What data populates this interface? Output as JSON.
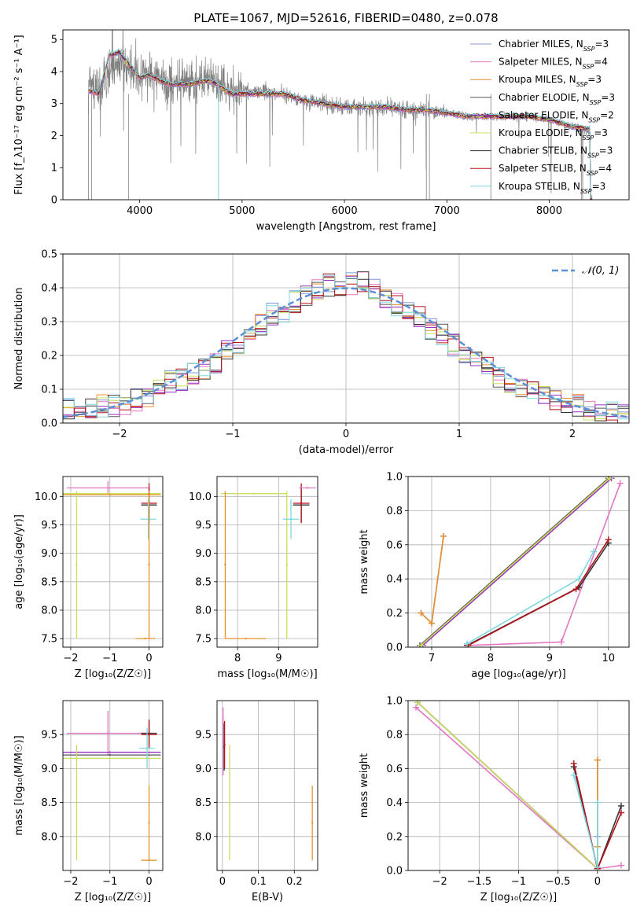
{
  "figure_title": "PLATE=1067, MJD=52616, FIBERID=0480, z=0.078",
  "models": [
    {
      "name": "Chabrier MILES",
      "nssp": "3",
      "color": "#7f96d8"
    },
    {
      "name": "Salpeter MILES",
      "nssp": "4",
      "color": "#e377c2"
    },
    {
      "name": "Kroupa MILES",
      "nssp": "3",
      "color": "#e8902c"
    },
    {
      "name": "Chabrier ELODIE",
      "nssp": "3",
      "color": "#555555"
    },
    {
      "name": "Salpeter ELODIE",
      "nssp": "2",
      "color": "#9a2fc4"
    },
    {
      "name": "Kroupa ELODIE",
      "nssp": "3",
      "color": "#c8e05a"
    },
    {
      "name": "Chabrier STELIB",
      "nssp": "3",
      "color": "#333333"
    },
    {
      "name": "Salpeter STELIB",
      "nssp": "4",
      "color": "#b5121b"
    },
    {
      "name": "Kroupa STELIB",
      "nssp": "3",
      "color": "#7fd8e0"
    }
  ],
  "chart_data": [
    {
      "id": "spectrum",
      "type": "line",
      "title": "PLATE=1067, MJD=52616, FIBERID=0480, z=0.078",
      "xlabel": "wavelength [Angstrom, rest frame]",
      "ylabel": "Flux [f_λ10⁻¹⁷ erg cm⁻² s⁻¹ A⁻¹]",
      "xlim": [
        3250,
        8780
      ],
      "ylim": [
        0,
        5.3
      ],
      "xticks": [
        4000,
        5000,
        6000,
        7000,
        8000
      ],
      "yticks": [
        0,
        1,
        2,
        3,
        4,
        5
      ],
      "legend_position": "top-right",
      "observed_flux": {
        "x": [
          3500,
          3600,
          3700,
          3800,
          3900,
          4000,
          4100,
          4200,
          4300,
          4400,
          4500,
          4600,
          4700,
          4800,
          4900,
          5000,
          5200,
          5400,
          5600,
          5800,
          6000,
          6200,
          6400,
          6600,
          6800,
          7000,
          7200,
          7400,
          7600,
          7800,
          8000,
          8200,
          8400
        ],
        "y": [
          3.5,
          3.4,
          3.9,
          4.3,
          4.1,
          3.8,
          3.9,
          3.7,
          3.6,
          3.7,
          3.6,
          3.7,
          3.7,
          3.6,
          3.4,
          3.4,
          3.4,
          3.3,
          3.1,
          3.0,
          2.9,
          2.9,
          2.9,
          2.8,
          2.8,
          2.7,
          2.6,
          2.6,
          2.6,
          2.6,
          2.5,
          2.3,
          2.1
        ]
      },
      "model_flux": {
        "x": [
          3500,
          3600,
          3700,
          3800,
          3900,
          4000,
          4100,
          4200,
          4300,
          4400,
          4500,
          4600,
          4700,
          4800,
          4900,
          5000,
          5200,
          5400,
          5600,
          5800,
          6000,
          6200,
          6400,
          6600,
          6800,
          7000,
          7200,
          7400,
          7600,
          7800,
          8000,
          8200,
          8400
        ],
        "y": [
          3.4,
          3.3,
          4.5,
          4.6,
          4.2,
          3.8,
          3.9,
          3.7,
          3.6,
          3.6,
          3.6,
          3.7,
          3.7,
          3.5,
          3.3,
          3.3,
          3.3,
          3.3,
          3.1,
          3.0,
          2.9,
          2.9,
          2.9,
          2.8,
          2.8,
          2.7,
          2.6,
          2.6,
          2.6,
          2.6,
          2.5,
          2.3,
          2.2
        ]
      }
    },
    {
      "id": "residuals",
      "type": "line",
      "xlabel": "(data-model)/error",
      "ylabel": "Normed distribution",
      "xlim": [
        -2.5,
        2.5
      ],
      "ylim": [
        0,
        0.5
      ],
      "xticks": [
        -2,
        -1,
        0,
        1,
        2
      ],
      "yticks": [
        0.0,
        0.1,
        0.2,
        0.3,
        0.4,
        0.5
      ],
      "legend_position": "top-right",
      "reference_curve": "𝒩(0, 1)",
      "reference_color": "#5b8fd6",
      "histogram_bin_edges": [
        -2.5,
        -2.4,
        -2.3,
        -2.2,
        -2.1,
        -2.0,
        -1.9,
        -1.8,
        -1.7,
        -1.6,
        -1.5,
        -1.4,
        -1.3,
        -1.2,
        -1.1,
        -1.0,
        -0.9,
        -0.8,
        -0.7,
        -0.6,
        -0.5,
        -0.4,
        -0.3,
        -0.2,
        -0.1,
        0.0,
        0.1,
        0.2,
        0.3,
        0.4,
        0.5,
        0.6,
        0.7,
        0.8,
        0.9,
        1.0,
        1.1,
        1.2,
        1.3,
        1.4,
        1.5,
        1.6,
        1.7,
        1.8,
        1.9,
        2.0,
        2.1,
        2.2,
        2.3,
        2.4,
        2.5
      ],
      "histogram_counts_typical": [
        0.04,
        0.03,
        0.04,
        0.05,
        0.05,
        0.06,
        0.07,
        0.08,
        0.1,
        0.12,
        0.13,
        0.15,
        0.16,
        0.18,
        0.21,
        0.24,
        0.26,
        0.29,
        0.32,
        0.33,
        0.36,
        0.38,
        0.4,
        0.41,
        0.4,
        0.41,
        0.42,
        0.4,
        0.37,
        0.35,
        0.33,
        0.31,
        0.28,
        0.26,
        0.23,
        0.2,
        0.18,
        0.16,
        0.14,
        0.12,
        0.11,
        0.1,
        0.08,
        0.07,
        0.06,
        0.05,
        0.04,
        0.04,
        0.03,
        0.03
      ]
    },
    {
      "id": "age_vs_Z",
      "type": "scatter",
      "xlabel": "Z [log₁₀(Z/Z☉)]",
      "ylabel": "age  [log₁₀(age/yr)]",
      "xlim": [
        -2.2,
        0.35
      ],
      "ylim": [
        7.35,
        10.35
      ],
      "xticks": [
        -2,
        -1,
        0
      ],
      "yticks": [
        7.5,
        8.0,
        8.5,
        9.0,
        9.5,
        10.0
      ],
      "points": [
        {
          "x": -1.05,
          "y": 10.15,
          "xerr": 1.05,
          "yerr": 0.12,
          "model": "Salpeter MILES"
        },
        {
          "x": -1.0,
          "y": 10.05,
          "xerr": 1.3,
          "yerr": 0.0,
          "model": "Kroupa ELODIE"
        },
        {
          "x": -1.0,
          "y": 10.03,
          "xerr": 1.3,
          "yerr": 0.0,
          "model": "Kroupa MILES"
        },
        {
          "x": -1.85,
          "y": 8.8,
          "xerr": 0.0,
          "yerr": 1.3,
          "model": "Kroupa ELODIE"
        },
        {
          "x": 0.0,
          "y": 9.85,
          "xerr": 0.2,
          "yerr": 0.3,
          "model": "Chabrier STELIB"
        },
        {
          "x": 0.0,
          "y": 9.88,
          "xerr": 0.2,
          "yerr": 0.35,
          "model": "Salpeter STELIB"
        },
        {
          "x": -0.02,
          "y": 9.6,
          "xerr": 0.2,
          "yerr": 0.35,
          "model": "Kroupa STELIB"
        },
        {
          "x": 0.0,
          "y": 8.8,
          "xerr": 0.0,
          "yerr": 1.3,
          "model": "Kroupa MILES"
        },
        {
          "x": -0.1,
          "y": 7.5,
          "xerr": 0.25,
          "yerr": 0.0,
          "model": "Kroupa MILES"
        }
      ]
    },
    {
      "id": "age_vs_mass",
      "type": "scatter",
      "xlabel": "mass [log₁₀(M/M☉)]",
      "ylabel": "",
      "xlim": [
        7.5,
        9.95
      ],
      "ylim": [
        7.35,
        10.35
      ],
      "xticks": [
        8,
        9
      ],
      "yticks": [
        7.5,
        8.0,
        8.5,
        9.0,
        9.5,
        10.0
      ],
      "points": [
        {
          "x": 8.4,
          "y": 10.05,
          "xerr": 0.8,
          "yerr": 0.0,
          "model": "Kroupa ELODIE"
        },
        {
          "x": 7.7,
          "y": 8.8,
          "xerr": 0.0,
          "yerr": 1.3,
          "model": "Kroupa MILES"
        },
        {
          "x": 8.2,
          "y": 7.5,
          "xerr": 0.5,
          "yerr": 0.0,
          "model": "Kroupa MILES"
        },
        {
          "x": 9.2,
          "y": 8.8,
          "xerr": 0.0,
          "yerr": 1.3,
          "model": "Kroupa ELODIE"
        },
        {
          "x": 9.55,
          "y": 9.85,
          "xerr": 0.2,
          "yerr": 0.3,
          "model": "Chabrier STELIB"
        },
        {
          "x": 9.55,
          "y": 9.88,
          "xerr": 0.2,
          "yerr": 0.35,
          "model": "Salpeter STELIB"
        },
        {
          "x": 9.3,
          "y": 9.6,
          "xerr": 0.2,
          "yerr": 0.35,
          "model": "Kroupa STELIB"
        },
        {
          "x": 9.7,
          "y": 10.15,
          "xerr": 0.2,
          "yerr": 0.0,
          "model": "Salpeter MILES"
        }
      ]
    },
    {
      "id": "weight_vs_age",
      "type": "line",
      "xlabel": "age  [log₁₀(age/yr)]",
      "ylabel": "mass weight",
      "xlim": [
        6.6,
        10.35
      ],
      "ylim": [
        0,
        1.0
      ],
      "xticks": [
        7,
        8,
        9,
        10
      ],
      "yticks": [
        0.0,
        0.2,
        0.4,
        0.6,
        0.8,
        1.0
      ],
      "series": [
        {
          "model": "Chabrier MILES",
          "x": [
            6.82,
            7.0,
            7.2
          ],
          "y": [
            0.2,
            0.14,
            0.65
          ]
        },
        {
          "model": "Salpeter MILES",
          "x": [
            7.6,
            9.2,
            10.2
          ],
          "y": [
            0.01,
            0.03,
            0.96
          ]
        },
        {
          "model": "Kroupa MILES",
          "x": [
            6.82,
            7.0,
            7.2
          ],
          "y": [
            0.2,
            0.14,
            0.65
          ]
        },
        {
          "model": "Chabrier ELODIE",
          "x": [
            6.8,
            10.0
          ],
          "y": [
            0.01,
            0.99
          ]
        },
        {
          "model": "Salpeter ELODIE",
          "x": [
            6.85,
            10.05
          ],
          "y": [
            0.01,
            0.99
          ]
        },
        {
          "model": "Kroupa ELODIE",
          "x": [
            6.82,
            10.02
          ],
          "y": [
            0.01,
            0.99
          ]
        },
        {
          "model": "Chabrier STELIB",
          "x": [
            7.6,
            9.5,
            10.0
          ],
          "y": [
            0.01,
            0.35,
            0.61
          ]
        },
        {
          "model": "Salpeter STELIB",
          "x": [
            7.62,
            9.45,
            10.0
          ],
          "y": [
            0.01,
            0.34,
            0.63
          ]
        },
        {
          "model": "Kroupa STELIB",
          "x": [
            7.6,
            9.5,
            9.75
          ],
          "y": [
            0.02,
            0.4,
            0.56
          ]
        }
      ]
    },
    {
      "id": "mass_vs_Z",
      "type": "scatter",
      "xlabel": "Z [log₁₀(Z/Z☉)]",
      "ylabel": "mass [log₁₀(M/M☉)]",
      "xlim": [
        -2.2,
        0.35
      ],
      "ylim": [
        7.5,
        10.0
      ],
      "xticks": [
        -2,
        -1,
        0
      ],
      "yticks": [
        8.0,
        8.5,
        9.0,
        9.5
      ],
      "points": [
        {
          "x": -1.05,
          "y": 9.52,
          "xerr": 1.05,
          "yerr": 0.33,
          "model": "Salpeter MILES"
        },
        {
          "x": -1.0,
          "y": 9.24,
          "xerr": 1.3,
          "yerr": 0.0,
          "model": "Salpeter ELODIE"
        },
        {
          "x": -1.0,
          "y": 9.2,
          "xerr": 1.3,
          "yerr": 0.0,
          "model": "Chabrier ELODIE"
        },
        {
          "x": -1.0,
          "y": 9.15,
          "xerr": 1.3,
          "yerr": 0.0,
          "model": "Kroupa ELODIE"
        },
        {
          "x": -1.85,
          "y": 8.5,
          "xerr": 0.0,
          "yerr": 0.85,
          "model": "Kroupa ELODIE"
        },
        {
          "x": 0.0,
          "y": 9.52,
          "xerr": 0.2,
          "yerr": 0.2,
          "model": "Chabrier STELIB"
        },
        {
          "x": 0.0,
          "y": 9.5,
          "xerr": 0.2,
          "yerr": 0.2,
          "model": "Salpeter STELIB"
        },
        {
          "x": -0.05,
          "y": 9.3,
          "xerr": 0.2,
          "yerr": 0.3,
          "model": "Kroupa STELIB"
        },
        {
          "x": 0.0,
          "y": 8.2,
          "xerr": 0.0,
          "yerr": 0.55,
          "model": "Kroupa MILES"
        },
        {
          "x": 0.0,
          "y": 7.65,
          "xerr": 0.2,
          "yerr": 0.0,
          "model": "Kroupa MILES"
        }
      ]
    },
    {
      "id": "mass_vs_EBV",
      "type": "scatter",
      "xlabel": "E(B-V)",
      "ylabel": "",
      "xlim": [
        -0.015,
        0.265
      ],
      "ylim": [
        7.5,
        10.0
      ],
      "xticks": [
        0.0,
        0.1,
        0.2
      ],
      "yticks": [
        8.0,
        8.5,
        9.0,
        9.5
      ],
      "points": [
        {
          "x": 0.002,
          "y": 9.4,
          "xerr": 0.0,
          "yerr": 0.5,
          "model": "Salpeter MILES"
        },
        {
          "x": 0.005,
          "y": 9.32,
          "xerr": 0.0,
          "yerr": 0.35,
          "model": "Chabrier STELIB"
        },
        {
          "x": 0.006,
          "y": 9.35,
          "xerr": 0.0,
          "yerr": 0.35,
          "model": "Salpeter STELIB"
        },
        {
          "x": 0.02,
          "y": 8.5,
          "xerr": 0.0,
          "yerr": 0.85,
          "model": "Kroupa ELODIE"
        },
        {
          "x": 0.25,
          "y": 8.2,
          "xerr": 0.0,
          "yerr": 0.55,
          "model": "Kroupa MILES"
        }
      ]
    },
    {
      "id": "weight_vs_Z",
      "type": "line",
      "xlabel": "Z [log₁₀(Z/Z☉)]",
      "ylabel": "mass weight",
      "xlim": [
        -2.4,
        0.4
      ],
      "ylim": [
        0,
        1.0
      ],
      "xticks": [
        -2.0,
        -1.5,
        -1.0,
        -0.5,
        0.0
      ],
      "yticks": [
        0.0,
        0.2,
        0.4,
        0.6,
        0.8,
        1.0
      ],
      "series": [
        {
          "model": "Chabrier MILES",
          "x": [
            0.0,
            0.0,
            0.0
          ],
          "y": [
            0.2,
            0.14,
            0.65
          ]
        },
        {
          "model": "Salpeter MILES",
          "x": [
            -2.3,
            0.0,
            0.3
          ],
          "y": [
            0.96,
            0.01,
            0.03
          ]
        },
        {
          "model": "Kroupa MILES",
          "x": [
            0.0,
            0.0,
            0.0
          ],
          "y": [
            0.65,
            0.14,
            0.01
          ]
        },
        {
          "model": "Chabrier ELODIE",
          "x": [
            -2.28,
            0.0
          ],
          "y": [
            0.99,
            0.01
          ]
        },
        {
          "model": "Salpeter ELODIE",
          "x": [
            -2.28,
            0.0
          ],
          "y": [
            0.99,
            0.01
          ]
        },
        {
          "model": "Kroupa ELODIE",
          "x": [
            -2.28,
            0.0
          ],
          "y": [
            0.99,
            0.01
          ]
        },
        {
          "model": "Chabrier STELIB",
          "x": [
            -0.3,
            0.0,
            0.3
          ],
          "y": [
            0.61,
            0.01,
            0.38
          ]
        },
        {
          "model": "Salpeter STELIB",
          "x": [
            -0.3,
            0.0,
            0.3
          ],
          "y": [
            0.63,
            0.01,
            0.34
          ]
        },
        {
          "model": "Kroupa STELIB",
          "x": [
            -0.3,
            0.0,
            0.0
          ],
          "y": [
            0.56,
            0.02,
            0.4
          ]
        }
      ]
    }
  ]
}
